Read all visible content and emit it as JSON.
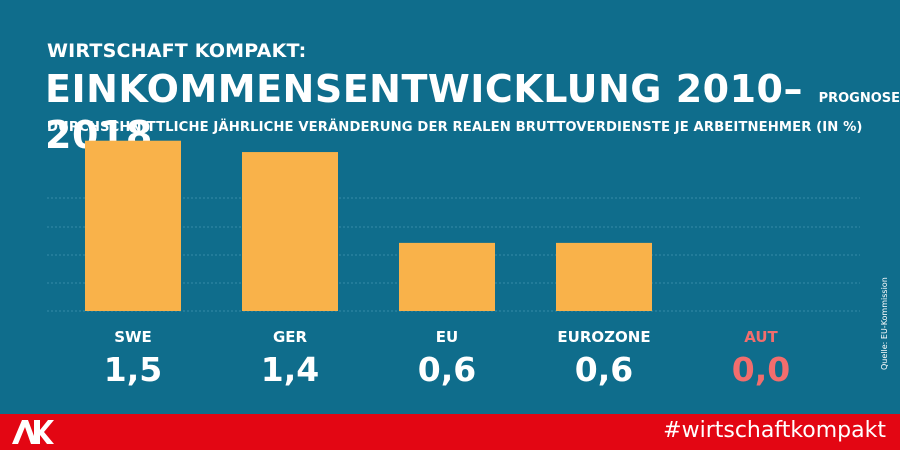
{
  "header": {
    "kicker": "WIRTSCHAFT KOMPAKT:",
    "title": "EINKOMMENSENTWICKLUNG 2010–2018",
    "title_suffix": "PROGNOSE",
    "subtitle": "DURCHSCHNITTLICHE JÄHRLICHE VERÄNDERUNG DER REALEN BRUTTOVERDIENSTE JE ARBEITNEHMER (IN %)"
  },
  "source": "Quelle: EU-Kommission",
  "footer": {
    "logo_text": "AK",
    "hashtag": "#wirtschaftkompakt"
  },
  "colors": {
    "background": "#0f6d8c",
    "bar": "#f9b24a",
    "label": "#ffffff",
    "highlight": "#f26d6d",
    "footer": "#e30613",
    "grid": "#2e86a3"
  },
  "chart_data": {
    "type": "bar",
    "categories": [
      "SWE",
      "GER",
      "EU",
      "EUROZONE",
      "AUT"
    ],
    "values": [
      1.5,
      1.4,
      0.6,
      0.6,
      0.0
    ],
    "value_labels": [
      "1,5",
      "1,4",
      "0,6",
      "0,6",
      "0,0"
    ],
    "highlight": "AUT",
    "ylim": [
      0,
      1.7
    ],
    "grid": true
  }
}
